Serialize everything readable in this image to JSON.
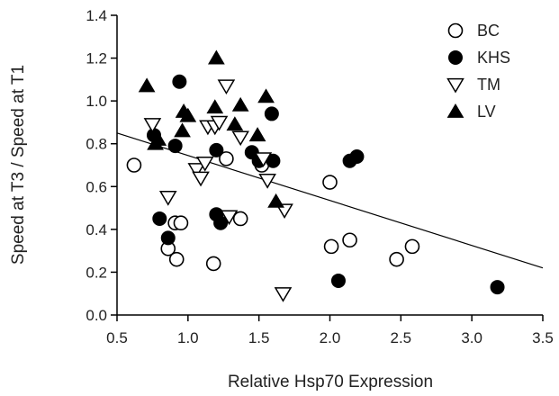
{
  "chart_data": {
    "type": "scatter",
    "title": "",
    "xlabel": "Relative Hsp70 Expression",
    "ylabel": "Speed at T3 / Speed at T1",
    "xlim": [
      0.5,
      3.5
    ],
    "ylim": [
      0.0,
      1.4
    ],
    "xticks": [
      "0.5",
      "1.0",
      "1.5",
      "2.0",
      "2.5",
      "3.0",
      "3.5"
    ],
    "yticks": [
      "0.0",
      "0.2",
      "0.4",
      "0.6",
      "0.8",
      "1.0",
      "1.2",
      "1.4"
    ],
    "grid": false,
    "legend_position": "top-right",
    "series": [
      {
        "name": "BC",
        "marker": "circle-open",
        "points": [
          {
            "x": 0.62,
            "y": 0.7
          },
          {
            "x": 0.86,
            "y": 0.31
          },
          {
            "x": 0.91,
            "y": 0.43
          },
          {
            "x": 0.92,
            "y": 0.26
          },
          {
            "x": 0.95,
            "y": 0.43
          },
          {
            "x": 1.18,
            "y": 0.24
          },
          {
            "x": 1.27,
            "y": 0.73
          },
          {
            "x": 1.37,
            "y": 0.45
          },
          {
            "x": 1.52,
            "y": 0.7
          },
          {
            "x": 2.0,
            "y": 0.62
          },
          {
            "x": 2.01,
            "y": 0.32
          },
          {
            "x": 2.14,
            "y": 0.35
          },
          {
            "x": 2.47,
            "y": 0.26
          },
          {
            "x": 2.58,
            "y": 0.32
          }
        ]
      },
      {
        "name": "KHS",
        "marker": "circle-filled",
        "points": [
          {
            "x": 0.76,
            "y": 0.84
          },
          {
            "x": 0.8,
            "y": 0.45
          },
          {
            "x": 0.86,
            "y": 0.36
          },
          {
            "x": 0.91,
            "y": 0.79
          },
          {
            "x": 0.94,
            "y": 1.09
          },
          {
            "x": 1.2,
            "y": 0.77
          },
          {
            "x": 1.2,
            "y": 0.47
          },
          {
            "x": 1.23,
            "y": 0.43
          },
          {
            "x": 1.45,
            "y": 0.76
          },
          {
            "x": 1.5,
            "y": 0.72
          },
          {
            "x": 1.59,
            "y": 0.94
          },
          {
            "x": 1.6,
            "y": 0.72
          },
          {
            "x": 2.06,
            "y": 0.16
          },
          {
            "x": 2.14,
            "y": 0.72
          },
          {
            "x": 2.19,
            "y": 0.74
          },
          {
            "x": 3.18,
            "y": 0.13
          }
        ]
      },
      {
        "name": "TM",
        "marker": "triangle-down-open",
        "points": [
          {
            "x": 0.75,
            "y": 0.89
          },
          {
            "x": 0.86,
            "y": 0.55
          },
          {
            "x": 1.06,
            "y": 0.68
          },
          {
            "x": 1.09,
            "y": 0.64
          },
          {
            "x": 1.12,
            "y": 0.71
          },
          {
            "x": 1.14,
            "y": 0.88
          },
          {
            "x": 1.19,
            "y": 0.88
          },
          {
            "x": 1.22,
            "y": 0.9
          },
          {
            "x": 1.27,
            "y": 1.07
          },
          {
            "x": 1.29,
            "y": 0.46
          },
          {
            "x": 1.37,
            "y": 0.83
          },
          {
            "x": 1.53,
            "y": 0.73
          },
          {
            "x": 1.56,
            "y": 0.63
          },
          {
            "x": 1.67,
            "y": 0.1
          },
          {
            "x": 1.68,
            "y": 0.49
          }
        ]
      },
      {
        "name": "LV",
        "marker": "triangle-up-filled",
        "points": [
          {
            "x": 0.71,
            "y": 1.07
          },
          {
            "x": 0.77,
            "y": 0.8
          },
          {
            "x": 0.79,
            "y": 0.82
          },
          {
            "x": 0.96,
            "y": 0.86
          },
          {
            "x": 0.97,
            "y": 0.95
          },
          {
            "x": 1.0,
            "y": 0.93
          },
          {
            "x": 1.19,
            "y": 0.97
          },
          {
            "x": 1.2,
            "y": 1.2
          },
          {
            "x": 1.33,
            "y": 0.89
          },
          {
            "x": 1.37,
            "y": 0.98
          },
          {
            "x": 1.49,
            "y": 0.84
          },
          {
            "x": 1.55,
            "y": 1.02
          },
          {
            "x": 1.62,
            "y": 0.53
          }
        ]
      }
    ],
    "trendline": {
      "x": [
        0.5,
        3.5
      ],
      "y": [
        0.85,
        0.22
      ]
    }
  }
}
